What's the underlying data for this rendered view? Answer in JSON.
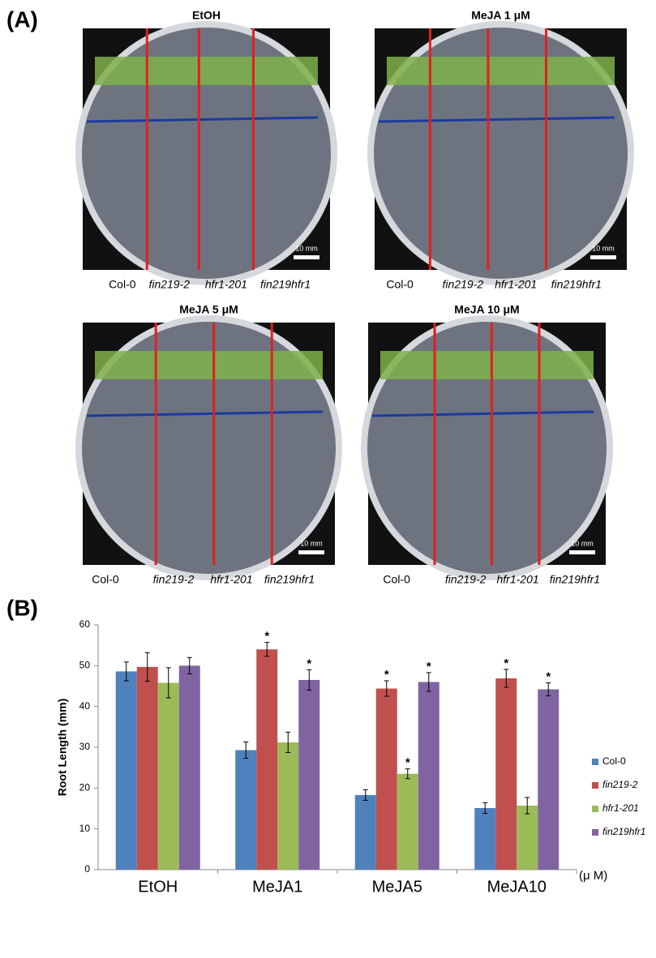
{
  "panel_a": {
    "label": "(A)",
    "plates": [
      {
        "title": "EtOH",
        "genotypes": [
          "Col-0",
          "fin219-2",
          "hfr1-201",
          "fin219hfr1"
        ]
      },
      {
        "title": "MeJA  1 μM",
        "genotypes": [
          "Col-0",
          "fin219-2",
          "hfr1-201",
          "fin219hfr1"
        ]
      },
      {
        "title": "MeJA  5 μM",
        "genotypes": [
          "Col-0",
          "fin219-2",
          "hfr1-201",
          "fin219hfr1"
        ]
      },
      {
        "title": "MeJA  10 μM",
        "genotypes": [
          "Col-0",
          "fin219-2",
          "hfr1-201",
          "fin219hfr1"
        ]
      }
    ],
    "scale_bar": "10 mm"
  },
  "panel_b": {
    "label": "(B)"
  },
  "chart_data": {
    "type": "bar",
    "y_label": "Root Length (mm)",
    "x_unit": "(μ M)",
    "categories": [
      "EtOH",
      "MeJA1",
      "MeJA5",
      "MeJA10"
    ],
    "ylim": [
      0,
      60
    ],
    "yticks": [
      0,
      10,
      20,
      30,
      40,
      50,
      60
    ],
    "series": [
      {
        "name": "Col-0",
        "color": "#4f81bd",
        "values": [
          48.6,
          29.3,
          18.3,
          15.1
        ],
        "errors": [
          2.3,
          2.0,
          1.3,
          1.3
        ]
      },
      {
        "name": "fin219-2",
        "color": "#c0504d",
        "values": [
          49.7,
          54.0,
          44.4,
          46.9
        ],
        "errors": [
          3.5,
          1.7,
          1.9,
          2.2
        ],
        "value_labels": [
          null,
          "*",
          "*",
          "*"
        ]
      },
      {
        "name": "hfr1-201",
        "color": "#9bbb59",
        "values": [
          45.8,
          31.2,
          23.5,
          15.7
        ],
        "errors": [
          3.7,
          2.5,
          1.2,
          2.0
        ],
        "value_labels": [
          null,
          null,
          "*",
          null
        ]
      },
      {
        "name": "fin219hfr1",
        "color": "#8064a2",
        "values": [
          50.0,
          46.5,
          46.0,
          44.2
        ],
        "errors": [
          2.0,
          2.5,
          2.3,
          1.6
        ],
        "value_labels": [
          null,
          "*",
          "*",
          "*"
        ]
      }
    ]
  }
}
